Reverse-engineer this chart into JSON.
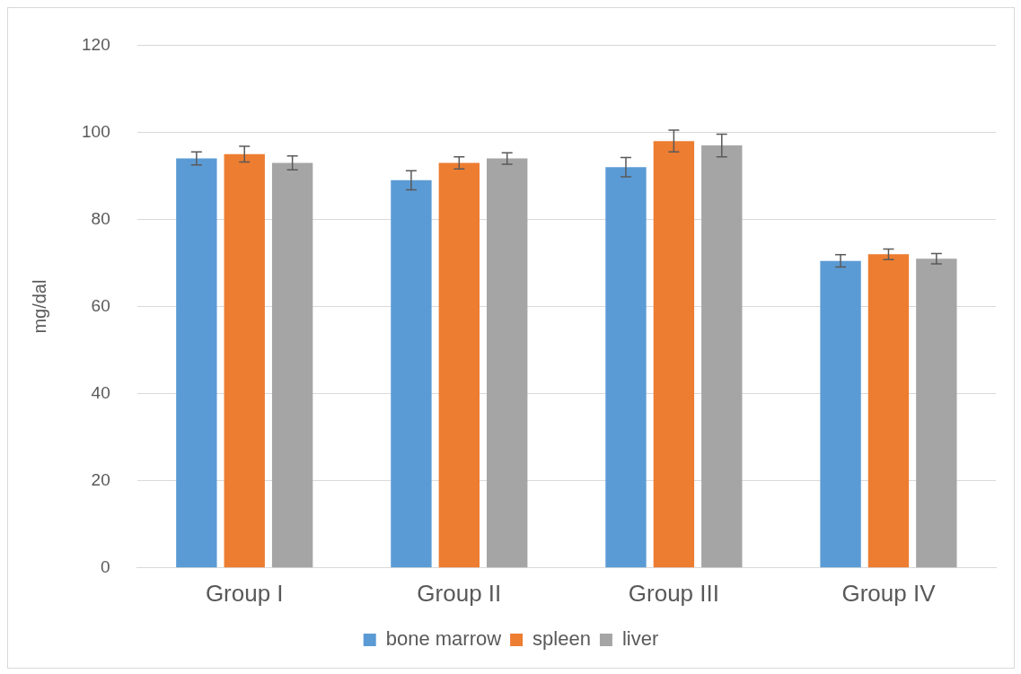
{
  "chart_data": {
    "type": "bar",
    "ylabel": "mg/dal",
    "categories": [
      "Group I",
      "Group II",
      "Group III",
      "Group IV"
    ],
    "series": [
      {
        "name": "bone marrow",
        "color": "#5b9bd5",
        "values": [
          94,
          89,
          92,
          70.5
        ],
        "errors": [
          1.5,
          2.2,
          2.2,
          1.4
        ]
      },
      {
        "name": "spleen",
        "color": "#ed7d31",
        "values": [
          95,
          93,
          98,
          72
        ],
        "errors": [
          1.8,
          1.4,
          2.5,
          1.2
        ]
      },
      {
        "name": "liver",
        "color": "#a5a5a5",
        "values": [
          93,
          94,
          97,
          71
        ],
        "errors": [
          1.6,
          1.3,
          2.6,
          1.2
        ]
      }
    ],
    "ylim": [
      0,
      120
    ],
    "yticks": [
      0,
      20,
      40,
      60,
      80,
      100,
      120
    ],
    "grid": "y",
    "legend": "bottom"
  }
}
